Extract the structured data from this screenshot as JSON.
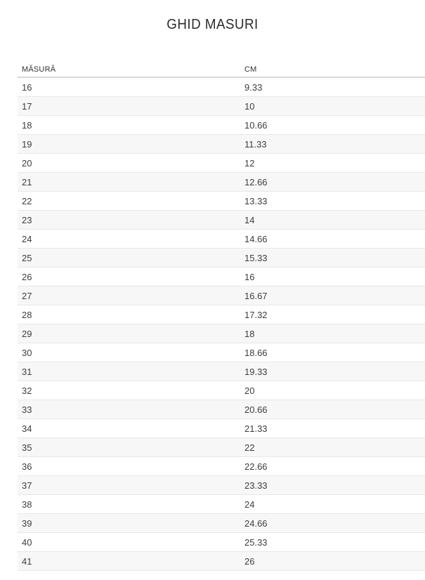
{
  "page": {
    "title": "GHID MASURI"
  },
  "table": {
    "columns": [
      {
        "label": "MĂSURĂ"
      },
      {
        "label": "CM"
      }
    ],
    "rows": [
      {
        "masura": "16",
        "cm": "9.33"
      },
      {
        "masura": "17",
        "cm": "10"
      },
      {
        "masura": "18",
        "cm": "10.66"
      },
      {
        "masura": "19",
        "cm": "11.33"
      },
      {
        "masura": "20",
        "cm": "12"
      },
      {
        "masura": "21",
        "cm": "12.66"
      },
      {
        "masura": "22",
        "cm": "13.33"
      },
      {
        "masura": "23",
        "cm": "14"
      },
      {
        "masura": "24",
        "cm": "14.66"
      },
      {
        "masura": "25",
        "cm": "15.33"
      },
      {
        "masura": "26",
        "cm": "16"
      },
      {
        "masura": "27",
        "cm": "16.67"
      },
      {
        "masura": "28",
        "cm": "17.32"
      },
      {
        "masura": "29",
        "cm": "18"
      },
      {
        "masura": "30",
        "cm": "18.66"
      },
      {
        "masura": "31",
        "cm": "19.33"
      },
      {
        "masura": "32",
        "cm": "20"
      },
      {
        "masura": "33",
        "cm": "20.66"
      },
      {
        "masura": "34",
        "cm": "21.33"
      },
      {
        "masura": "35",
        "cm": "22"
      },
      {
        "masura": "36",
        "cm": "22.66"
      },
      {
        "masura": "37",
        "cm": "23.33"
      },
      {
        "masura": "38",
        "cm": "24"
      },
      {
        "masura": "39",
        "cm": "24.66"
      },
      {
        "masura": "40",
        "cm": "25.33"
      },
      {
        "masura": "41",
        "cm": "26"
      }
    ]
  },
  "colors": {
    "title": "#2d2d2d",
    "header_text": "#333333",
    "cell_text": "#3d3d3d",
    "stripe": "#f7f7f7",
    "row_border": "#e8e8e8",
    "header_border": "#d9d9d9",
    "background": "#ffffff"
  }
}
